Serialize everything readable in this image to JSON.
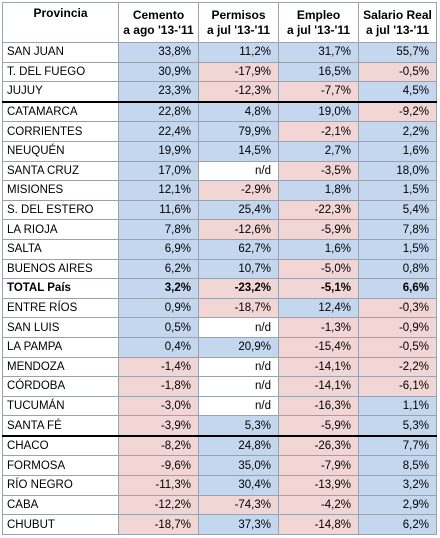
{
  "headers": [
    {
      "line1": "Provincia",
      "line2": ""
    },
    {
      "line1": "Cemento",
      "line2": "a ago '13-'11"
    },
    {
      "line1": "Permisos",
      "line2": "a jul '13-'11"
    },
    {
      "line1": "Empleo",
      "line2": "a jul '13-'11"
    },
    {
      "line1": "Salario Real",
      "line2": "a jul '13-'11"
    }
  ],
  "colors": {
    "positive": "#c5d7ee",
    "negative": "#f2d6d6",
    "neutral": "#ffffff"
  },
  "rows": [
    {
      "name": "SAN JUAN",
      "values": [
        "33,8%",
        "11,2%",
        "31,7%",
        "55,7%"
      ]
    },
    {
      "name": "T. DEL FUEGO",
      "values": [
        "30,9%",
        "-17,9%",
        "16,5%",
        "-0,5%"
      ]
    },
    {
      "name": "JUJUY",
      "values": [
        "23,3%",
        "-12,3%",
        "-7,7%",
        "4,5%"
      ]
    },
    {
      "name": "CATAMARCA",
      "values": [
        "22,8%",
        "4,8%",
        "19,0%",
        "-9,2%"
      ]
    },
    {
      "name": "CORRIENTES",
      "values": [
        "22,4%",
        "79,9%",
        "-2,1%",
        "2,2%"
      ]
    },
    {
      "name": "NEUQUÉN",
      "values": [
        "19,9%",
        "14,5%",
        "2,7%",
        "1,6%"
      ]
    },
    {
      "name": "SANTA CRUZ",
      "values": [
        "17,0%",
        "n/d",
        "-3,5%",
        "18,0%"
      ]
    },
    {
      "name": "MISIONES",
      "values": [
        "12,1%",
        "-2,9%",
        "1,8%",
        "1,5%"
      ]
    },
    {
      "name": "S. DEL ESTERO",
      "values": [
        "11,6%",
        "25,4%",
        "-22,3%",
        "5,4%"
      ]
    },
    {
      "name": "LA RIOJA",
      "values": [
        "7,8%",
        "-12,6%",
        "-5,9%",
        "7,8%"
      ]
    },
    {
      "name": "SALTA",
      "values": [
        "6,9%",
        "62,7%",
        "1,6%",
        "1,5%"
      ]
    },
    {
      "name": "BUENOS AIRES",
      "values": [
        "6,2%",
        "10,7%",
        "-5,0%",
        "0,8%"
      ]
    },
    {
      "name": "TOTAL País",
      "values": [
        "3,2%",
        "-23,2%",
        "-5,1%",
        "6,6%"
      ],
      "bold": true
    },
    {
      "name": "ENTRE RÍOS",
      "values": [
        "0,9%",
        "-18,7%",
        "12,4%",
        "-0,3%"
      ]
    },
    {
      "name": "SAN LUIS",
      "values": [
        "0,5%",
        "n/d",
        "-1,3%",
        "-0,9%"
      ]
    },
    {
      "name": "LA PAMPA",
      "values": [
        "0,4%",
        "20,9%",
        "-15,4%",
        "-0,5%"
      ]
    },
    {
      "name": "MENDOZA",
      "values": [
        "-1,4%",
        "n/d",
        "-14,1%",
        "-2,2%"
      ]
    },
    {
      "name": "CÓRDOBA",
      "values": [
        "-1,8%",
        "n/d",
        "-14,1%",
        "-6,1%"
      ]
    },
    {
      "name": "TUCUMÁN",
      "values": [
        "-3,0%",
        "n/d",
        "-16,3%",
        "1,1%"
      ]
    },
    {
      "name": "SANTA FÉ",
      "values": [
        "-3,9%",
        "5,3%",
        "-5,9%",
        "5,3%"
      ]
    },
    {
      "name": "CHACO",
      "values": [
        "-8,2%",
        "24,8%",
        "-26,3%",
        "7,7%"
      ]
    },
    {
      "name": "FORMOSA",
      "values": [
        "-9,6%",
        "35,0%",
        "-7,9%",
        "8,5%"
      ]
    },
    {
      "name": "RÍO NEGRO",
      "values": [
        "-11,3%",
        "30,4%",
        "-13,9%",
        "3,2%"
      ]
    },
    {
      "name": "CABA",
      "values": [
        "-12,2%",
        "-74,3%",
        "-4,2%",
        "2,9%"
      ]
    },
    {
      "name": "CHUBUT",
      "values": [
        "-18,7%",
        "37,3%",
        "-14,8%",
        "6,2%"
      ]
    }
  ]
}
